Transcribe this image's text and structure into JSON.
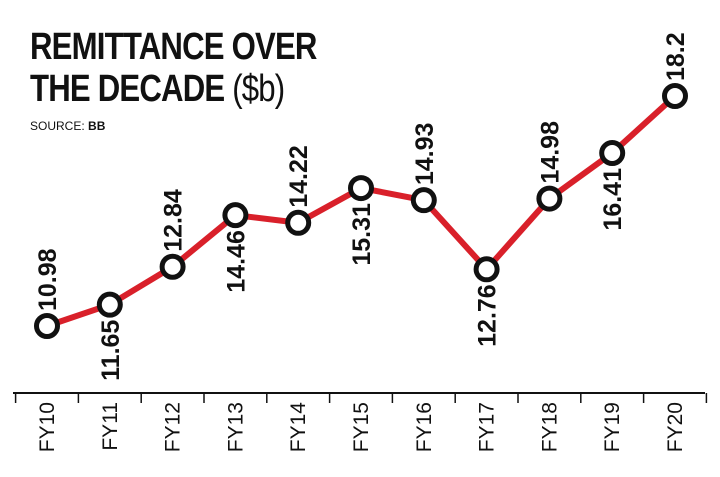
{
  "title_line1": "REMITTANCE  OVER",
  "title_line2_main": "THE DECADE",
  "title_line2_unit": "($b)",
  "source_label": "SOURCE:",
  "source_value": "BB",
  "colors": {
    "line": "#d9202a",
    "marker_stroke": "#111111",
    "marker_fill": "#ffffff",
    "axis": "#111111"
  },
  "chart_data": {
    "type": "line",
    "title": "REMITTANCE  OVER THE DECADE ($b)",
    "categories": [
      "FY10",
      "FY11",
      "FY12",
      "FY13",
      "FY14",
      "FY15",
      "FY16",
      "FY17",
      "FY18",
      "FY19",
      "FY20"
    ],
    "series": [
      {
        "values": [
          10.98,
          11.65,
          12.84,
          14.46,
          14.22,
          15.31,
          14.93,
          12.76,
          14.98,
          16.41,
          18.2
        ]
      }
    ],
    "data_labels": [
      "10.98",
      "11.65",
      "12.84",
      "14.46",
      "14.22",
      "15.31",
      "14.93",
      "12.76",
      "14.98",
      "16.41",
      "18.2"
    ],
    "label_position": [
      "above",
      "below",
      "above",
      "below",
      "above",
      "below",
      "above",
      "below",
      "above",
      "below",
      "above"
    ],
    "xlabel": "",
    "ylabel": "",
    "ylim": [
      10.98,
      18.2
    ],
    "grid": false,
    "legend": "none"
  }
}
